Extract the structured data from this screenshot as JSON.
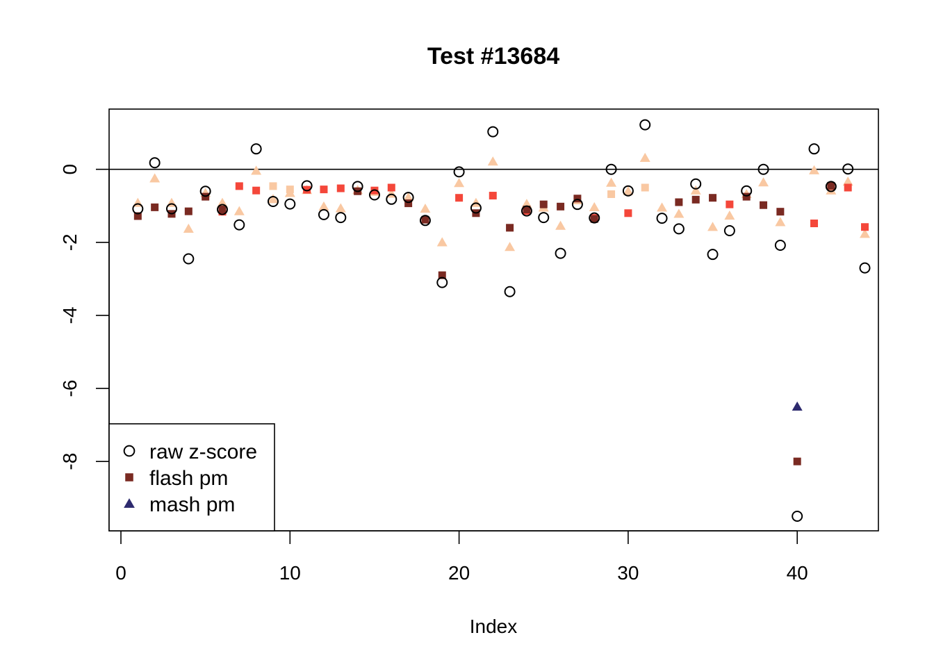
{
  "chart_data": {
    "type": "scatter",
    "title": "Test #13684",
    "xlabel": "Index",
    "ylabel": "",
    "xlim": [
      0,
      45.5
    ],
    "ylim": [
      -9.9,
      1.65
    ],
    "x_ticks": [
      "0",
      "10",
      "20",
      "30",
      "40"
    ],
    "y_ticks": [
      "0",
      "-2",
      "-4",
      "-6",
      "-8"
    ],
    "reference_line_y": 0,
    "grid": false,
    "legend_position": "bottom-left",
    "legend": [
      {
        "label": "raw z-score",
        "marker": "circle-open",
        "color": "#000000"
      },
      {
        "label": "flash pm",
        "marker": "square",
        "color": "#7A2A22"
      },
      {
        "label": "mash pm",
        "marker": "triangle",
        "color": "#2D2A6E"
      }
    ],
    "series": [
      {
        "name": "raw z-score",
        "marker": "circle-open",
        "color": "#000000",
        "x": [
          1,
          2,
          3,
          4,
          5,
          6,
          7,
          8,
          9,
          10,
          11,
          12,
          13,
          14,
          15,
          16,
          17,
          18,
          19,
          20,
          21,
          22,
          23,
          24,
          25,
          26,
          27,
          28,
          29,
          30,
          31,
          32,
          33,
          34,
          35,
          36,
          37,
          38,
          39,
          40,
          41,
          42,
          43,
          44
        ],
        "y": [
          -1.08,
          0.18,
          -1.08,
          -2.45,
          -0.6,
          -1.1,
          -1.52,
          0.56,
          -0.88,
          -0.95,
          -0.45,
          -1.24,
          -1.32,
          -0.47,
          -0.7,
          -0.82,
          -0.77,
          -1.4,
          -3.1,
          -0.07,
          -1.06,
          1.03,
          -3.35,
          -1.14,
          -1.32,
          -2.3,
          -0.96,
          -1.33,
          0.0,
          -0.59,
          1.22,
          -1.34,
          -1.63,
          -0.4,
          -2.33,
          -1.68,
          -0.59,
          0.0,
          -2.08,
          -9.5,
          0.56,
          -0.47,
          0.01,
          -2.7
        ]
      },
      {
        "name": "flash pm",
        "marker": "square",
        "color": "#7A2A22",
        "x": [
          1,
          2,
          3,
          4,
          5,
          6,
          14,
          17,
          18,
          19,
          21,
          23,
          24,
          25,
          26,
          27,
          28,
          33,
          34,
          35,
          37,
          38,
          39,
          40,
          42
        ],
        "y": [
          -1.28,
          -1.04,
          -1.22,
          -1.15,
          -0.75,
          -1.1,
          -0.6,
          -0.93,
          -1.38,
          -2.9,
          -1.2,
          -1.6,
          -1.1,
          -0.96,
          -1.02,
          -0.8,
          -1.36,
          -0.9,
          -0.83,
          -0.78,
          -0.75,
          -0.98,
          -1.16,
          -8.0,
          -0.45
        ]
      },
      {
        "name": "",
        "marker": "square",
        "color": "#F4473A",
        "x": [
          6,
          7,
          8,
          11,
          12,
          13,
          15,
          16,
          20,
          22,
          24,
          28,
          30,
          36,
          41,
          42,
          43,
          44
        ],
        "y": [
          -1.16,
          -0.46,
          -0.58,
          -0.56,
          -0.55,
          -0.52,
          -0.58,
          -0.5,
          -0.78,
          -0.72,
          -1.14,
          -1.33,
          -1.2,
          -0.96,
          -1.48,
          -0.46,
          -0.5,
          -1.58
        ]
      },
      {
        "name": "",
        "marker": "square",
        "color": "#F9C8A2",
        "x": [
          9,
          10,
          29,
          31
        ],
        "y": [
          -0.46,
          -0.55,
          -0.68,
          -0.5
        ]
      },
      {
        "name": "mash pm",
        "marker": "triangle",
        "color": "#2D2A6E",
        "x": [
          40
        ],
        "y": [
          -6.5
        ]
      },
      {
        "name": "",
        "marker": "triangle",
        "color": "#F9C8A2",
        "x": [
          1,
          2,
          3,
          4,
          5,
          6,
          7,
          8,
          9,
          10,
          11,
          12,
          13,
          14,
          15,
          16,
          17,
          18,
          19,
          20,
          21,
          22,
          23,
          24,
          25,
          26,
          27,
          28,
          29,
          30,
          31,
          32,
          33,
          34,
          35,
          36,
          37,
          38,
          39,
          41,
          42,
          43,
          44
        ],
        "y": [
          -0.92,
          -0.25,
          -0.92,
          -1.63,
          -0.65,
          -0.92,
          -1.15,
          -0.04,
          -0.82,
          -0.65,
          -0.57,
          -1.02,
          -1.07,
          -0.57,
          -0.62,
          -0.67,
          -0.77,
          -1.08,
          -2.0,
          -0.38,
          -0.92,
          0.21,
          -2.13,
          -0.95,
          -1.05,
          -1.55,
          -0.85,
          -1.04,
          -0.37,
          -0.6,
          0.31,
          -1.05,
          -1.22,
          -0.58,
          -1.58,
          -1.27,
          -0.68,
          -0.36,
          -1.45,
          -0.03,
          -0.58,
          -0.34,
          -1.77
        ]
      }
    ]
  }
}
